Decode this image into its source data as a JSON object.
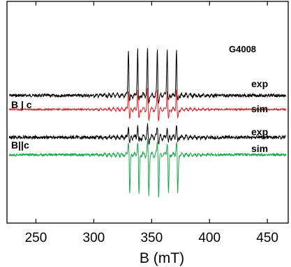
{
  "chart_data": {
    "type": "line",
    "title": "",
    "sample_label": "G4008",
    "xlabel": "B (mT)",
    "ylabel": "",
    "xlim": [
      225,
      468
    ],
    "x_ticks": [
      250,
      300,
      350,
      400,
      450
    ],
    "x_tick_labels": [
      "250",
      "300",
      "350",
      "400",
      "450"
    ],
    "y_ticks_shown": false,
    "grid": false,
    "orientation_labels": [
      "B | c",
      "B||c"
    ],
    "hyperfine_lines_mT": [
      330.5,
      338.5,
      347.0,
      355.5,
      364.0,
      372.0
    ],
    "series": [
      {
        "name": "exp",
        "orientation": "B | c",
        "color": "#000000",
        "amplitude_up": 1.0,
        "amplitude_down": 0.35
      },
      {
        "name": "sim",
        "orientation": "B | c",
        "color": "#e0202a",
        "amplitude_up": 0.55,
        "amplitude_down": 0.55
      },
      {
        "name": "exp",
        "orientation": "B||c",
        "color": "#000000",
        "amplitude_up": 0.45,
        "amplitude_down": 0.3
      },
      {
        "name": "sim",
        "orientation": "B||c",
        "color": "#1fa64a",
        "amplitude_up": 0.6,
        "amplitude_down": 1.0
      }
    ]
  }
}
